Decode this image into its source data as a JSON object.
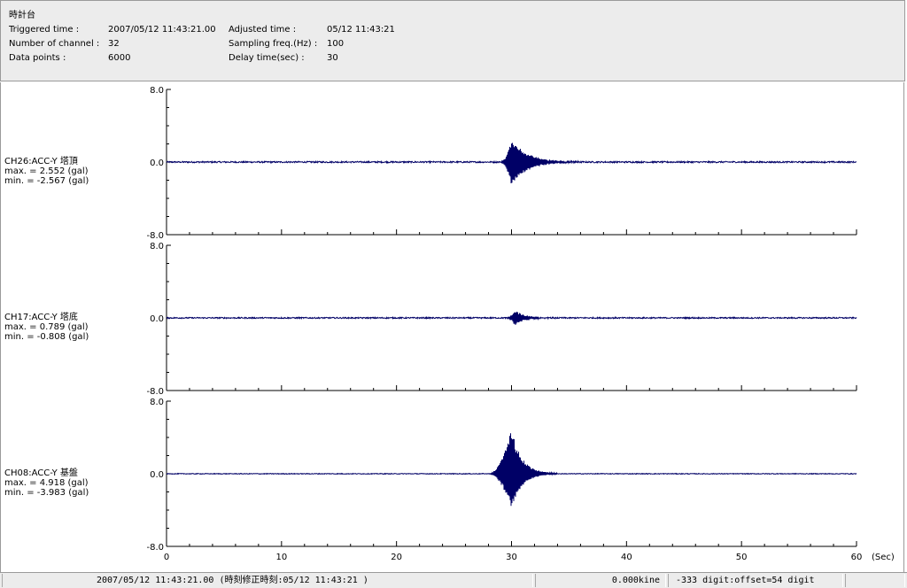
{
  "header": {
    "station": "時計台",
    "triggered_label": "Triggered time :",
    "triggered_value": "2007/05/12 11:43:21.00",
    "channels_label": "Number of channel :",
    "channels_value": "32",
    "datapoints_label": "Data points :",
    "datapoints_value": "6000",
    "adjusted_label": "Adjusted time :",
    "adjusted_value": "05/12 11:43:21",
    "sampling_label": "Sampling freq.(Hz) :",
    "sampling_value": "100",
    "delay_label": "Delay time(sec) :",
    "delay_value": "30"
  },
  "chart_data": {
    "type": "line",
    "x_range": [
      0,
      60
    ],
    "x_ticks": [
      "0",
      "10",
      "20",
      "30",
      "40",
      "50",
      "60"
    ],
    "x_unit": "(Sec)",
    "y_tick_labels": [
      "8.0",
      "0.0",
      "-8.0"
    ],
    "y_range": [
      -8,
      8
    ],
    "grid": false,
    "series": [
      {
        "name": "CH26:ACC-Y 塔頂",
        "max_label": "max. = 2.552 (gal)",
        "min_label": "min. = -2.567 (gal)",
        "max": 2.552,
        "min": -2.567,
        "event_start": 29.0,
        "event_peak": 30.0,
        "event_end": 36.0,
        "noise": 0.08,
        "color": "#000066"
      },
      {
        "name": "CH17:ACC-Y 塔底",
        "max_label": "max. = 0.789 (gal)",
        "min_label": "min. = -0.808 (gal)",
        "max": 0.789,
        "min": -0.808,
        "event_start": 29.5,
        "event_peak": 30.3,
        "event_end": 34.0,
        "noise": 0.07,
        "color": "#000066"
      },
      {
        "name": "CH08:ACC-Y 基盤",
        "max_label": "max. = 4.918 (gal)",
        "min_label": "min. = -3.983 (gal)",
        "max": 4.918,
        "min": -3.983,
        "event_start": 28.0,
        "event_peak": 30.0,
        "event_end": 34.0,
        "noise": 0.04,
        "color": "#000066"
      }
    ]
  },
  "status": {
    "time": "2007/05/12 11:43:21.00 (時刻修正時刻:05/12 11:43:21 )",
    "velocity": "0.000kine",
    "digit": "-333 digit:offset=54 digit",
    "extra": ""
  }
}
